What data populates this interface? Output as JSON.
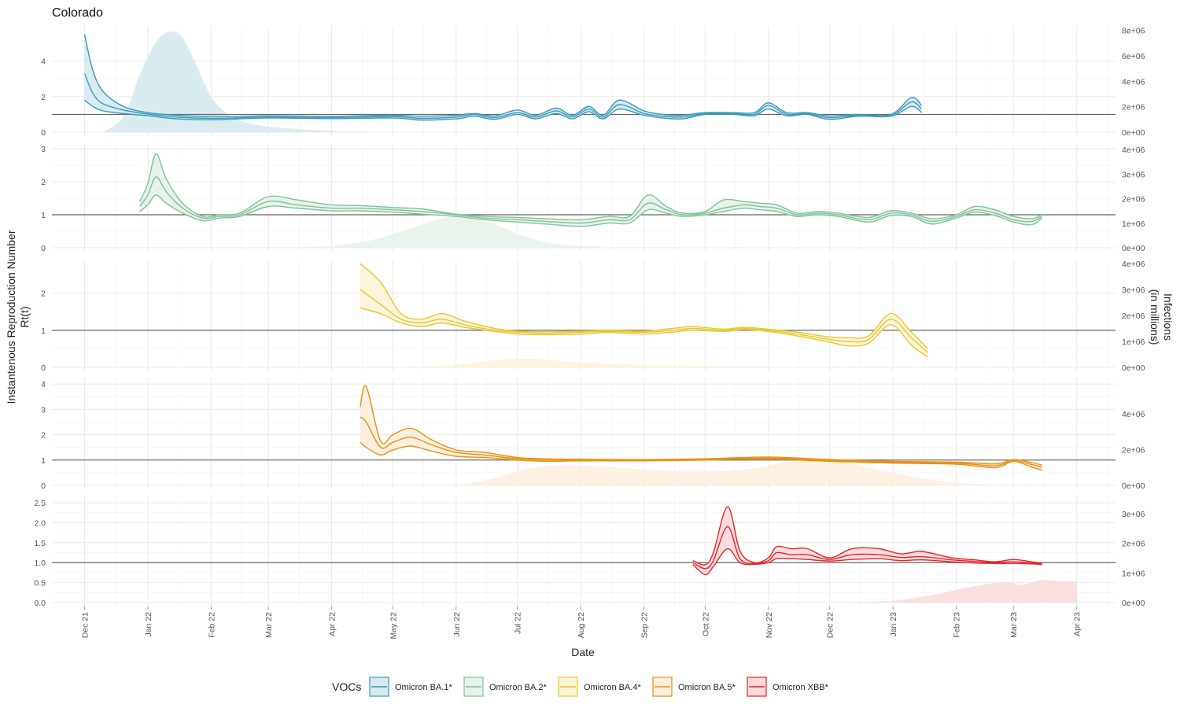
{
  "chart_data": {
    "type": "line",
    "title": "Colorado",
    "xlabel": "Date",
    "ylabel_left": [
      "Instantenous Reproduction Number",
      "Rt(t)"
    ],
    "ylabel_right": [
      "Infections",
      "(in millions)"
    ],
    "x_ticks": [
      "Dec 21",
      "Jan 22",
      "Feb 22",
      "Mar 22",
      "Apr 22",
      "May 22",
      "Jun 22",
      "Jul 22",
      "Aug 22",
      "Sep 22",
      "Oct 22",
      "Nov 22",
      "Dec 22",
      "Jan 23",
      "Feb 23",
      "Mar 23",
      "Apr 23"
    ],
    "x_range": [
      "2021-11-15",
      "2023-04-20"
    ],
    "reference_line": 1,
    "grid": true,
    "legend": {
      "title": "VOCs",
      "position": "bottom",
      "items": [
        "Omicron BA.1*",
        "Omicron BA.2*",
        "Omicron BA.4*",
        "Omicron BA.5*",
        "Omicron XBB*"
      ]
    },
    "panels": [
      {
        "name": "Omicron BA.1*",
        "color": "#3a9ab8",
        "fill": "#d5e9ef",
        "y_left_ticks": [
          "0",
          "2",
          "4"
        ],
        "y_left_range": [
          0,
          5.8
        ],
        "y_right_ticks": [
          "0e+00",
          "2e+06",
          "4e+06",
          "6e+06",
          "8e+06"
        ],
        "y_right_range": [
          0,
          8100000
        ],
        "rt": {
          "dates": [
            "2021-12-01",
            "2021-12-05",
            "2021-12-10",
            "2021-12-20",
            "2022-01-01",
            "2022-01-15",
            "2022-02-01",
            "2022-03-01",
            "2022-04-01",
            "2022-05-01",
            "2022-05-15",
            "2022-06-01",
            "2022-06-10",
            "2022-06-20",
            "2022-07-01",
            "2022-07-10",
            "2022-07-20",
            "2022-07-28",
            "2022-08-05",
            "2022-08-12",
            "2022-08-20",
            "2022-09-01",
            "2022-09-10",
            "2022-09-20",
            "2022-10-01",
            "2022-10-15",
            "2022-10-25",
            "2022-11-01",
            "2022-11-10",
            "2022-11-20",
            "2022-12-01",
            "2022-12-15",
            "2022-12-31",
            "2023-01-10",
            "2023-01-15"
          ],
          "mid": [
            3.3,
            2.2,
            1.6,
            1.25,
            1.02,
            0.85,
            0.78,
            0.85,
            0.82,
            0.88,
            0.78,
            0.85,
            1.0,
            0.82,
            1.1,
            0.85,
            1.2,
            0.85,
            1.3,
            0.85,
            1.55,
            1.05,
            0.9,
            0.85,
            1.05,
            1.05,
            1.0,
            1.5,
            1.0,
            1.05,
            0.82,
            0.95,
            0.95,
            1.7,
            1.3
          ],
          "upper": [
            5.5,
            3.5,
            2.3,
            1.45,
            1.1,
            0.95,
            0.88,
            0.92,
            0.9,
            0.95,
            0.9,
            0.95,
            1.05,
            0.92,
            1.25,
            0.95,
            1.35,
            0.95,
            1.45,
            0.95,
            1.8,
            1.2,
            1.0,
            0.95,
            1.1,
            1.1,
            1.1,
            1.65,
            1.1,
            1.1,
            0.92,
            1.0,
            1.0,
            1.95,
            1.5
          ],
          "lower": [
            1.8,
            1.45,
            1.2,
            1.05,
            0.92,
            0.75,
            0.7,
            0.8,
            0.76,
            0.8,
            0.68,
            0.75,
            0.9,
            0.72,
            1.0,
            0.75,
            1.05,
            0.75,
            1.15,
            0.75,
            1.3,
            0.95,
            0.8,
            0.75,
            1.0,
            1.0,
            0.92,
            1.3,
            0.92,
            1.0,
            0.72,
            0.9,
            0.9,
            1.45,
            1.1
          ]
        },
        "infections": {
          "dates": [
            "2021-12-10",
            "2021-12-20",
            "2021-12-28",
            "2022-01-05",
            "2022-01-12",
            "2022-01-18",
            "2022-01-25",
            "2022-02-01",
            "2022-02-10",
            "2022-02-20",
            "2022-03-01",
            "2022-03-15",
            "2022-04-01",
            "2022-04-20"
          ],
          "values": [
            0,
            1200000,
            4500000,
            7100000,
            7900000,
            7400000,
            5200000,
            2800000,
            1300000,
            700000,
            450000,
            250000,
            100000,
            0
          ]
        }
      },
      {
        "name": "Omicron BA.2*",
        "color": "#7fc29b",
        "fill": "#e6f2ea",
        "y_left_ticks": [
          "0",
          "1",
          "2",
          "3"
        ],
        "y_left_range": [
          0,
          3.05
        ],
        "y_right_ticks": [
          "0e+00",
          "1e+06",
          "2e+06",
          "3e+06",
          "4e+06"
        ],
        "y_right_range": [
          0,
          4100000
        ],
        "rt": {
          "dates": [
            "2021-12-28",
            "2022-01-01",
            "2022-01-05",
            "2022-01-10",
            "2022-01-18",
            "2022-01-28",
            "2022-02-05",
            "2022-02-15",
            "2022-03-01",
            "2022-03-15",
            "2022-04-01",
            "2022-04-15",
            "2022-05-01",
            "2022-05-15",
            "2022-06-01",
            "2022-06-15",
            "2022-07-01",
            "2022-07-15",
            "2022-08-01",
            "2022-08-15",
            "2022-08-25",
            "2022-09-03",
            "2022-09-12",
            "2022-09-20",
            "2022-10-01",
            "2022-10-10",
            "2022-10-20",
            "2022-10-28",
            "2022-11-05",
            "2022-11-15",
            "2022-11-25",
            "2022-12-05",
            "2022-12-20",
            "2022-12-31",
            "2023-01-10",
            "2023-01-20",
            "2023-02-01",
            "2023-02-10",
            "2023-02-20",
            "2023-03-01",
            "2023-03-10",
            "2023-03-15"
          ],
          "mid": [
            1.25,
            1.6,
            2.15,
            1.7,
            1.2,
            0.9,
            0.95,
            1.0,
            1.4,
            1.3,
            1.2,
            1.2,
            1.15,
            1.1,
            1.0,
            0.9,
            0.85,
            0.8,
            0.75,
            0.85,
            0.85,
            1.35,
            1.15,
            1.0,
            1.05,
            1.2,
            1.3,
            1.25,
            1.2,
            1.0,
            1.05,
            1.0,
            0.85,
            1.05,
            1.0,
            0.8,
            0.95,
            1.15,
            1.05,
            0.85,
            0.8,
            0.95
          ],
          "upper": [
            1.4,
            1.95,
            2.85,
            2.1,
            1.35,
            0.95,
            1.0,
            1.05,
            1.55,
            1.45,
            1.3,
            1.28,
            1.22,
            1.18,
            1.02,
            0.95,
            0.92,
            0.88,
            0.85,
            0.95,
            0.95,
            1.6,
            1.25,
            1.05,
            1.1,
            1.45,
            1.4,
            1.35,
            1.3,
            1.05,
            1.1,
            1.05,
            0.92,
            1.12,
            1.05,
            0.88,
            1.0,
            1.25,
            1.15,
            0.95,
            0.88,
            1.0
          ],
          "lower": [
            1.1,
            1.3,
            1.6,
            1.35,
            1.05,
            0.82,
            0.9,
            0.95,
            1.25,
            1.2,
            1.12,
            1.12,
            1.08,
            1.02,
            0.95,
            0.85,
            0.78,
            0.72,
            0.65,
            0.75,
            0.75,
            1.15,
            1.05,
            0.95,
            1.0,
            1.1,
            1.2,
            1.15,
            1.1,
            0.95,
            1.0,
            0.95,
            0.78,
            0.98,
            0.95,
            0.72,
            0.9,
            1.08,
            0.98,
            0.78,
            0.7,
            0.9
          ]
        },
        "infections": {
          "dates": [
            "2022-03-10",
            "2022-04-01",
            "2022-04-20",
            "2022-05-10",
            "2022-05-25",
            "2022-06-05",
            "2022-06-20",
            "2022-07-05",
            "2022-07-20",
            "2022-08-10",
            "2022-09-01",
            "2023-03-15"
          ],
          "values": [
            0,
            80000,
            300000,
            800000,
            1200000,
            1250000,
            950000,
            450000,
            150000,
            50000,
            0,
            0
          ]
        }
      },
      {
        "name": "Omicron BA.4*",
        "color": "#e8c72e",
        "fill": "#fcf4d8",
        "y_left_ticks": [
          "0",
          "1",
          "2"
        ],
        "y_left_range": [
          0,
          2.8
        ],
        "y_right_ticks": [
          "0e+00",
          "1e+06",
          "2e+06",
          "3e+06",
          "4e+06"
        ],
        "y_right_range": [
          0,
          4000000
        ],
        "rt": {
          "dates": [
            "2022-04-15",
            "2022-04-25",
            "2022-05-05",
            "2022-05-15",
            "2022-05-25",
            "2022-06-05",
            "2022-06-20",
            "2022-07-01",
            "2022-07-15",
            "2022-08-01",
            "2022-08-15",
            "2022-09-01",
            "2022-09-15",
            "2022-09-25",
            "2022-10-10",
            "2022-10-20",
            "2022-11-01",
            "2022-11-15",
            "2022-12-01",
            "2022-12-10",
            "2022-12-20",
            "2022-12-31",
            "2023-01-10",
            "2023-01-18"
          ],
          "mid": [
            2.1,
            1.7,
            1.3,
            1.2,
            1.3,
            1.15,
            1.0,
            0.95,
            0.92,
            0.95,
            0.97,
            0.95,
            1.0,
            1.05,
            1.0,
            1.05,
            1.0,
            0.9,
            0.75,
            0.7,
            0.75,
            1.3,
            0.8,
            0.4
          ],
          "upper": [
            2.8,
            2.3,
            1.45,
            1.3,
            1.45,
            1.25,
            1.05,
            0.98,
            0.96,
            0.98,
            1.0,
            0.98,
            1.05,
            1.1,
            1.03,
            1.08,
            1.03,
            0.95,
            0.82,
            0.8,
            0.85,
            1.45,
            0.95,
            0.5
          ],
          "lower": [
            1.6,
            1.45,
            1.2,
            1.1,
            1.2,
            1.08,
            0.97,
            0.9,
            0.88,
            0.9,
            0.94,
            0.9,
            0.95,
            1.0,
            0.97,
            1.02,
            0.97,
            0.85,
            0.68,
            0.58,
            0.65,
            1.15,
            0.6,
            0.28
          ]
        },
        "infections": {
          "dates": [
            "2022-05-01",
            "2022-06-01",
            "2022-06-20",
            "2022-07-10",
            "2022-07-30",
            "2022-08-20",
            "2022-09-15",
            "2022-10-15",
            "2022-11-15",
            "2022-12-15"
          ],
          "values": [
            0,
            100000,
            280000,
            330000,
            200000,
            120000,
            70000,
            40000,
            15000,
            0
          ]
        }
      },
      {
        "name": "Omicron BA.5*",
        "color": "#e8900f",
        "fill": "#fbeedd",
        "y_left_ticks": [
          "0",
          "1",
          "2",
          "3",
          "4"
        ],
        "y_left_range": [
          0,
          4.1
        ],
        "y_right_ticks": [
          "0e+00",
          "2e+06",
          "4e+06"
        ],
        "y_right_range": [
          0,
          5800000
        ],
        "rt": {
          "dates": [
            "2022-04-15",
            "2022-04-18",
            "2022-04-25",
            "2022-05-01",
            "2022-05-10",
            "2022-05-20",
            "2022-06-01",
            "2022-06-15",
            "2022-07-01",
            "2022-07-15",
            "2022-08-01",
            "2022-09-01",
            "2022-10-01",
            "2022-11-01",
            "2022-12-01",
            "2023-01-01",
            "2023-02-01",
            "2023-02-20",
            "2023-03-01",
            "2023-03-10",
            "2023-03-15"
          ],
          "mid": [
            2.7,
            2.5,
            1.5,
            1.7,
            1.9,
            1.6,
            1.3,
            1.2,
            1.05,
            1.0,
            1.0,
            1.0,
            1.02,
            1.08,
            0.98,
            0.92,
            0.88,
            0.78,
            0.98,
            0.82,
            0.72
          ],
          "upper": [
            3.1,
            3.9,
            1.75,
            2.0,
            2.25,
            1.8,
            1.4,
            1.3,
            1.1,
            1.05,
            1.03,
            1.02,
            1.05,
            1.12,
            1.02,
            0.95,
            0.92,
            0.85,
            1.02,
            0.9,
            0.8
          ],
          "lower": [
            1.7,
            1.5,
            1.2,
            1.4,
            1.55,
            1.35,
            1.15,
            1.1,
            1.0,
            0.95,
            0.97,
            0.97,
            1.0,
            1.04,
            0.95,
            0.88,
            0.84,
            0.7,
            0.95,
            0.72,
            0.6
          ]
        },
        "infections": {
          "dates": [
            "2022-06-01",
            "2022-06-20",
            "2022-07-05",
            "2022-07-20",
            "2022-08-10",
            "2022-09-01",
            "2022-09-20",
            "2022-10-10",
            "2022-10-25",
            "2022-11-10",
            "2022-11-25",
            "2022-12-10",
            "2022-12-28",
            "2023-01-20",
            "2023-02-10",
            "2023-03-01"
          ],
          "values": [
            0,
            400000,
            900000,
            1100000,
            1050000,
            900000,
            780000,
            800000,
            950000,
            1300000,
            1450000,
            1250000,
            800000,
            300000,
            80000,
            0
          ]
        }
      },
      {
        "name": "Omicron XBB*",
        "color": "#e8242a",
        "fill": "#fadada",
        "y_left_ticks": [
          "0.0",
          "0.5",
          "1.0",
          "1.5",
          "2.0",
          "2.5"
        ],
        "y_left_range": [
          0,
          2.6
        ],
        "y_right_ticks": [
          "0e+00",
          "1e+06",
          "2e+06",
          "3e+06"
        ],
        "y_right_range": [
          0,
          3500000
        ],
        "rt": {
          "dates": [
            "2022-09-25",
            "2022-10-01",
            "2022-10-05",
            "2022-10-12",
            "2022-10-18",
            "2022-10-25",
            "2022-11-01",
            "2022-11-05",
            "2022-11-12",
            "2022-11-20",
            "2022-12-01",
            "2022-12-12",
            "2022-12-25",
            "2023-01-05",
            "2023-01-15",
            "2023-01-30",
            "2023-02-10",
            "2023-02-20",
            "2023-03-01",
            "2023-03-10",
            "2023-03-15"
          ],
          "mid": [
            1.0,
            0.85,
            1.05,
            1.9,
            1.1,
            0.98,
            1.05,
            1.25,
            1.2,
            1.2,
            1.08,
            1.2,
            1.2,
            1.13,
            1.15,
            1.07,
            1.03,
            1.0,
            1.02,
            0.99,
            0.97
          ],
          "upper": [
            1.05,
            0.95,
            1.25,
            2.4,
            1.3,
            1.0,
            1.12,
            1.4,
            1.35,
            1.35,
            1.12,
            1.35,
            1.35,
            1.22,
            1.28,
            1.12,
            1.07,
            1.02,
            1.08,
            1.02,
            0.99
          ],
          "lower": [
            0.95,
            0.7,
            0.9,
            1.35,
            1.0,
            0.96,
            1.0,
            1.1,
            1.1,
            1.08,
            1.04,
            1.08,
            1.1,
            1.05,
            1.07,
            1.02,
            0.99,
            0.98,
            0.98,
            0.97,
            0.95
          ]
        },
        "infections": {
          "dates": [
            "2022-12-01",
            "2022-12-31",
            "2023-01-20",
            "2023-02-10",
            "2023-02-25",
            "2023-03-05",
            "2023-03-15",
            "2023-03-25",
            "2023-04-01"
          ],
          "values": [
            0,
            60000,
            250000,
            550000,
            700000,
            600000,
            760000,
            720000,
            720000
          ]
        }
      }
    ]
  }
}
